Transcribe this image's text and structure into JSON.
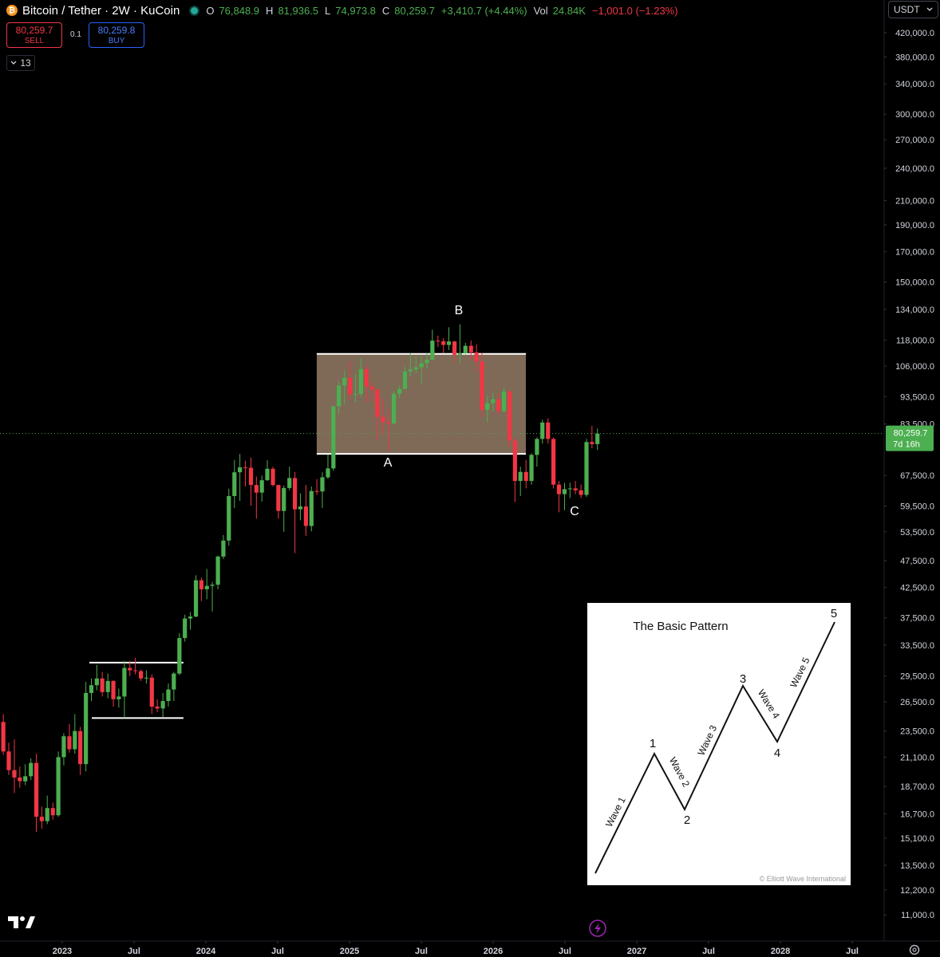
{
  "header": {
    "symbol": "Bitcoin / Tether · 2W · KuCoin",
    "ohlc": [
      {
        "key": "O",
        "value": "76,848.9"
      },
      {
        "key": "H",
        "value": "81,936.5"
      },
      {
        "key": "L",
        "value": "74,973.8"
      },
      {
        "key": "C",
        "value": "80,259.7"
      }
    ],
    "change": "+3,410.7 (+4.44%)",
    "volume_key": "Vol",
    "volume": "24.84K",
    "volume_change": "−1,001.0 (−1.23%)"
  },
  "trade": {
    "sell_price": "80,259.7",
    "sell": "SELL",
    "quantity": "0.1",
    "buy_price": "80,259.8",
    "buy": "BUY"
  },
  "indicators_count": "13",
  "currency": "USDT",
  "last_price_label": "80,259.7",
  "countdown": "7d 16h",
  "inset": {
    "title": "The Basic Pattern",
    "points": [
      "1",
      "2",
      "3",
      "4",
      "5"
    ],
    "waves": [
      "Wave 1",
      "Wave 2",
      "Wave 3",
      "Wave 4",
      "Wave 5"
    ],
    "credit": "© Elliott Wave International"
  },
  "chart_data": {
    "type": "candlestick",
    "log_scale": true,
    "up_color": "#4caf50",
    "down_color": "#f23645",
    "x": [
      2022.59,
      2022.628,
      2022.667,
      2022.705,
      2022.743,
      2022.782,
      2022.82,
      2022.858,
      2022.896,
      2022.935,
      2022.973,
      2023.011,
      2023.05,
      2023.088,
      2023.126,
      2023.165,
      2023.203,
      2023.241,
      2023.279,
      2023.318,
      2023.356,
      2023.394,
      2023.433,
      2023.471,
      2023.509,
      2023.548,
      2023.586,
      2023.624,
      2023.662,
      2023.701,
      2023.739,
      2023.777,
      2023.816,
      2023.854,
      2023.892,
      2023.931,
      2023.969,
      2024.007,
      2024.045,
      2024.084,
      2024.122,
      2024.16,
      2024.199,
      2024.237,
      2024.275,
      2024.314,
      2024.352,
      2024.39,
      2024.428,
      2024.467,
      2024.505,
      2024.543,
      2024.582,
      2024.62,
      2024.658,
      2024.697,
      2024.735,
      2024.773,
      2024.811,
      2024.85,
      2024.888,
      2024.926,
      2024.965,
      2025.003,
      2025.041,
      2025.08,
      2025.118,
      2025.156,
      2025.194,
      2025.233,
      2025.271,
      2025.309,
      2025.348,
      2025.386,
      2025.424,
      2025.463,
      2025.501,
      2025.539,
      2025.577,
      2025.616,
      2025.654,
      2025.692,
      2025.731,
      2025.769,
      2025.807,
      2025.846,
      2025.884,
      2025.922,
      2025.96,
      2025.999,
      2026.037,
      2026.075,
      2026.114,
      2026.152,
      2026.19,
      2026.229,
      2026.267,
      2026.305,
      2026.343,
      2026.382,
      2026.42,
      2026.458,
      2026.497,
      2026.535,
      2026.573,
      2026.612,
      2026.65,
      2026.688,
      2026.726
    ],
    "open": [
      24400,
      21600,
      20000,
      19400,
      19100,
      19500,
      20600,
      16500,
      16200,
      17100,
      16600,
      21100,
      23000,
      21800,
      23500,
      20500,
      27500,
      28400,
      29200,
      27600,
      28900,
      26800,
      27100,
      30500,
      30200,
      30100,
      29200,
      29300,
      26000,
      25800,
      26600,
      27900,
      29800,
      34500,
      37400,
      37700,
      43800,
      42200,
      42800,
      43000,
      48300,
      51600,
      62000,
      68400,
      69800,
      69700,
      64900,
      62900,
      66200,
      69400,
      64900,
      58300,
      64100,
      66800,
      58700,
      59400,
      54800,
      63300,
      63200,
      67000,
      69500,
      89800,
      97900,
      101000,
      94400,
      94500,
      104700,
      97500,
      96300,
      86000,
      84100,
      83700,
      94600,
      96500,
      103700,
      104600,
      105500,
      107300,
      108900,
      117800,
      117500,
      115700,
      117400,
      111100,
      111800,
      115300,
      112200,
      108000,
      88500,
      91000,
      92500,
      88000,
      95500,
      78000,
      66000,
      68500,
      66000,
      73500,
      78500,
      84000,
      78500,
      65000,
      62500,
      63800,
      64000,
      63500,
      62300,
      77500,
      76848.9
    ],
    "high": [
      25200,
      22400,
      22700,
      20300,
      20500,
      21000,
      21400,
      17200,
      18000,
      17500,
      21600,
      23300,
      24200,
      25200,
      23900,
      28800,
      29200,
      30900,
      30000,
      29800,
      29000,
      28000,
      31400,
      31400,
      31800,
      30300,
      30200,
      29700,
      26800,
      27500,
      28600,
      30000,
      35200,
      38000,
      38400,
      44700,
      44300,
      45900,
      43500,
      48500,
      52800,
      63900,
      72000,
      73800,
      71700,
      72700,
      67200,
      67500,
      71900,
      70000,
      65000,
      64800,
      70000,
      68500,
      62700,
      64900,
      64500,
      66500,
      68400,
      73600,
      90000,
      99500,
      104000,
      108300,
      102700,
      109500,
      106400,
      99500,
      96500,
      92800,
      88800,
      95700,
      97900,
      105800,
      111900,
      110400,
      110600,
      112000,
      123200,
      120200,
      119000,
      124500,
      117600,
      126000,
      116700,
      117900,
      116000,
      112000,
      94000,
      95000,
      94800,
      97000,
      96000,
      79000,
      70000,
      72000,
      74000,
      79000,
      85000,
      85500,
      79000,
      66000,
      65500,
      65500,
      66000,
      65000,
      78500,
      82800,
      81936.5
    ],
    "low": [
      21300,
      19600,
      18200,
      18600,
      18800,
      19200,
      15500,
      15700,
      16000,
      16300,
      16500,
      20400,
      21500,
      21400,
      19600,
      19900,
      26600,
      27800,
      27100,
      26900,
      26000,
      25900,
      24800,
      29500,
      29700,
      28900,
      28600,
      25200,
      25400,
      24900,
      26000,
      26600,
      29600,
      34000,
      35700,
      37600,
      40200,
      40500,
      38500,
      42200,
      47800,
      50500,
      59000,
      60800,
      64500,
      59600,
      56500,
      60600,
      66000,
      64500,
      56500,
      53500,
      63500,
      49000,
      56100,
      52600,
      53600,
      62300,
      59000,
      66600,
      68800,
      87000,
      90500,
      92300,
      91200,
      93300,
      91200,
      91300,
      78200,
      80000,
      74500,
      83200,
      92900,
      96300,
      101600,
      103000,
      98200,
      105000,
      108300,
      114700,
      112000,
      113300,
      107300,
      107300,
      111500,
      108700,
      103500,
      86000,
      84000,
      88000,
      87000,
      87500,
      76000,
      60500,
      62000,
      64000,
      65000,
      70000,
      77000,
      77000,
      64000,
      58000,
      58500,
      61500,
      62500,
      61500,
      61800,
      75500,
      74973.8
    ],
    "close": [
      21600,
      20000,
      19400,
      19100,
      19500,
      20600,
      16500,
      16200,
      17100,
      16600,
      21100,
      23000,
      21800,
      23500,
      20500,
      27500,
      28400,
      29200,
      27600,
      28900,
      26800,
      27100,
      30500,
      30200,
      30100,
      29200,
      29300,
      26000,
      25800,
      26600,
      27900,
      29800,
      34500,
      37400,
      37700,
      43800,
      42200,
      42800,
      43000,
      48300,
      51600,
      62000,
      68400,
      69800,
      69700,
      64900,
      62900,
      66200,
      69400,
      64900,
      58300,
      64100,
      66800,
      58700,
      59400,
      54800,
      63300,
      63200,
      67000,
      69500,
      89800,
      97900,
      101000,
      94400,
      94500,
      104700,
      97500,
      96300,
      86000,
      84100,
      83700,
      94600,
      96500,
      103700,
      104600,
      105500,
      107300,
      108900,
      117800,
      117500,
      115700,
      117400,
      111100,
      111800,
      115300,
      112200,
      108000,
      88500,
      91000,
      92500,
      88000,
      95500,
      78000,
      66000,
      68500,
      66000,
      73500,
      78500,
      84000,
      78500,
      65000,
      62500,
      63800,
      64000,
      63500,
      62300,
      77500,
      76848.9,
      80259.7
    ],
    "xlim": [
      2022.567,
      2028.722
    ],
    "xticks": [
      {
        "value": 2023,
        "label": "2023"
      },
      {
        "value": 2023.5,
        "label": "Jul"
      },
      {
        "value": 2024,
        "label": "2024"
      },
      {
        "value": 2024.5,
        "label": "Jul"
      },
      {
        "value": 2025,
        "label": "2025"
      },
      {
        "value": 2025.5,
        "label": "Jul"
      },
      {
        "value": 2026,
        "label": "2026"
      },
      {
        "value": 2026.5,
        "label": "Jul"
      },
      {
        "value": 2027,
        "label": "2027"
      },
      {
        "value": 2027.5,
        "label": "Jul"
      },
      {
        "value": 2028,
        "label": "2028"
      },
      {
        "value": 2028.5,
        "label": "Jul"
      }
    ],
    "ylim": [
      9875,
      480700
    ],
    "yticks": [
      {
        "value": 420000,
        "label": "420,000.0"
      },
      {
        "value": 380000,
        "label": "380,000.0"
      },
      {
        "value": 340000,
        "label": "340,000.0"
      },
      {
        "value": 300000,
        "label": "300,000.0"
      },
      {
        "value": 270000,
        "label": "270,000.0"
      },
      {
        "value": 240000,
        "label": "240,000.0"
      },
      {
        "value": 210000,
        "label": "210,000.0"
      },
      {
        "value": 190000,
        "label": "190,000.0"
      },
      {
        "value": 170000,
        "label": "170,000.0"
      },
      {
        "value": 150000,
        "label": "150,000.0"
      },
      {
        "value": 134000,
        "label": "134,000.0"
      },
      {
        "value": 118000,
        "label": "118,000.0"
      },
      {
        "value": 106000,
        "label": "106,000.0"
      },
      {
        "value": 93500,
        "label": "93,500.0"
      },
      {
        "value": 83500,
        "label": "83,500.0"
      },
      {
        "value": 67500,
        "label": "67,500.0"
      },
      {
        "value": 59500,
        "label": "59,500.0"
      },
      {
        "value": 53500,
        "label": "53,500.0"
      },
      {
        "value": 47500,
        "label": "47,500.0"
      },
      {
        "value": 42500,
        "label": "42,500.0"
      },
      {
        "value": 37500,
        "label": "37,500.0"
      },
      {
        "value": 33500,
        "label": "33,500.0"
      },
      {
        "value": 29500,
        "label": "29,500.0"
      },
      {
        "value": 26500,
        "label": "26,500.0"
      },
      {
        "value": 23500,
        "label": "23,500.0"
      },
      {
        "value": 21100,
        "label": "21,100.0"
      },
      {
        "value": 18700,
        "label": "18,700.0"
      },
      {
        "value": 16700,
        "label": "16,700.0"
      },
      {
        "value": 15100,
        "label": "15,100.0"
      },
      {
        "value": 13500,
        "label": "13,500.0"
      },
      {
        "value": 12200,
        "label": "12,200.0"
      },
      {
        "value": 11000,
        "label": "11,000.0"
      }
    ],
    "annotations": [
      {
        "text": "A",
        "x": 2025.267,
        "y": 70060
      },
      {
        "text": "B",
        "x": 2025.761,
        "y": 131400
      },
      {
        "text": "C",
        "x": 2026.567,
        "y": 57290
      }
    ],
    "range_box": {
      "x": [
        2024.772,
        2026.228
      ],
      "y": [
        73800,
        111500
      ]
    },
    "range_lines": [
      {
        "x": [
          2023.189,
          2023.844
        ],
        "y": 31170
      },
      {
        "x": [
          2023.206,
          2023.844
        ],
        "y": 24800
      }
    ]
  }
}
